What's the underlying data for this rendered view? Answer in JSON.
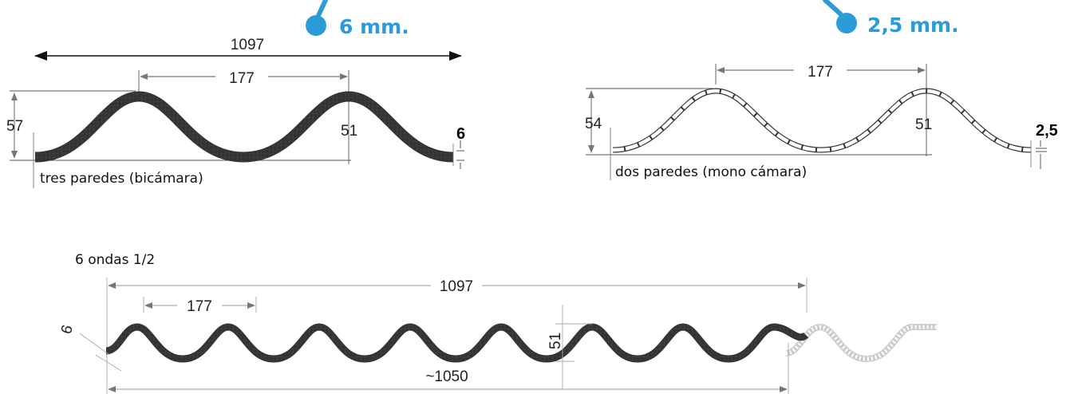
{
  "colors": {
    "accent": "#2b9cd8",
    "line": "#555555",
    "profile": "#333333"
  },
  "callouts": {
    "left": "6 mm.",
    "right": "2,5 mm."
  },
  "left_profile": {
    "overall_width": "1097",
    "pitch": "177",
    "total_height": "57",
    "wave_height": "51",
    "thickness": "6",
    "caption": "tres paredes (bicámara)"
  },
  "right_profile": {
    "pitch": "177",
    "total_height": "54",
    "wave_height": "51",
    "thickness": "2,5",
    "caption": "dos paredes (mono cámara)"
  },
  "full_sheet": {
    "title": "6 ondas 1/2",
    "overall_width": "1097",
    "pitch": "177",
    "wave_height": "51",
    "thickness": "6",
    "useful_width": "~1050"
  }
}
